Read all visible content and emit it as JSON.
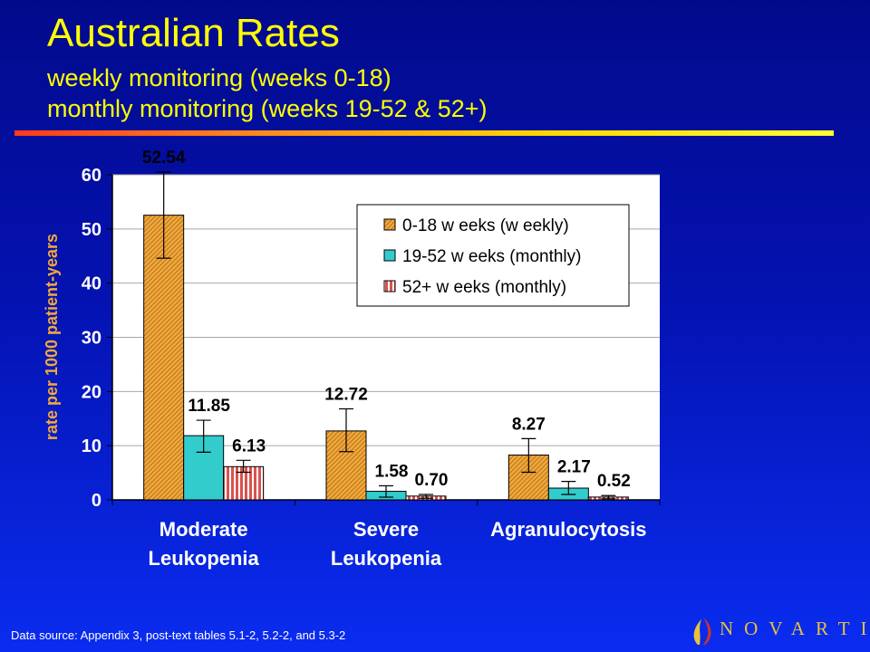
{
  "slide": {
    "title": "Australian Rates",
    "subtitle_line1": "weekly monitoring (weeks 0-18)",
    "subtitle_line2": "monthly monitoring (weeks 19-52 & 52+)",
    "source": "Data source: Appendix 3, post-text tables 5.1-2, 5.2-2, and 5.3-2",
    "logo_text": "NOVARTIS"
  },
  "chart_data": {
    "type": "bar",
    "ylabel": "rate per 1000 patient-years",
    "ylim": [
      0,
      60
    ],
    "yticks": [
      0,
      10,
      20,
      30,
      40,
      50,
      60
    ],
    "categories": [
      [
        "Moderate",
        "Leukopenia"
      ],
      [
        "Severe",
        "Leukopenia"
      ],
      [
        "Agranulocytosis"
      ]
    ],
    "series": [
      {
        "name": "0-18 w eeks (w eekly)",
        "values": [
          52.54,
          12.72,
          8.27
        ],
        "labels": [
          "52.54",
          "12.72",
          "8.27"
        ],
        "err_low": [
          44.6,
          8.9,
          5.1
        ],
        "err_high": [
          60.5,
          16.8,
          11.3
        ],
        "color": "#f2a93b",
        "pattern": "diagonal"
      },
      {
        "name": "19-52 w eeks (monthly)",
        "values": [
          11.85,
          1.58,
          2.17
        ],
        "labels": [
          "11.85",
          "1.58",
          "2.17"
        ],
        "err_low": [
          8.8,
          0.5,
          1.0
        ],
        "err_high": [
          14.7,
          2.6,
          3.4
        ],
        "color": "#33cccc",
        "pattern": "solid"
      },
      {
        "name": "52+ w eeks (monthly)",
        "values": [
          6.13,
          0.7,
          0.52
        ],
        "labels": [
          "6.13",
          "0.70",
          "0.52"
        ],
        "err_low": [
          5.1,
          0.3,
          0.2
        ],
        "err_high": [
          7.3,
          1.0,
          0.8
        ],
        "color": "#d9534f",
        "pattern": "vertical"
      }
    ],
    "legend": "top-right",
    "grid": true
  }
}
